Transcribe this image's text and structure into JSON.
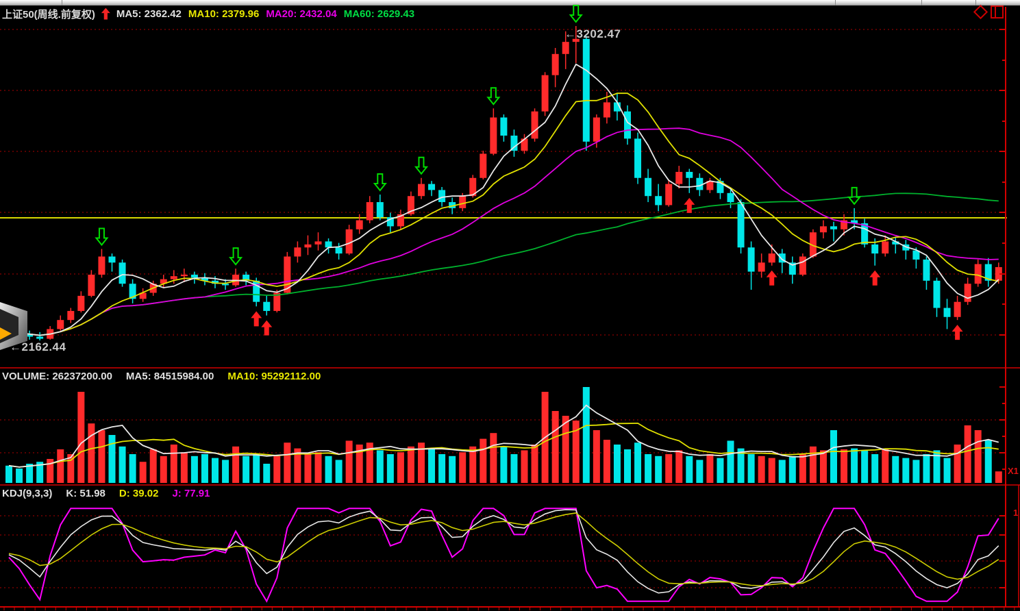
{
  "header": {
    "title": "上证50(周线.前复权)",
    "ma_items": [
      {
        "label": "MA5: 2362.42",
        "color": "#e0e0e0"
      },
      {
        "label": "MA10: 2379.96",
        "color": "#e8e800"
      },
      {
        "label": "MA20: 2432.04",
        "color": "#e800e8"
      },
      {
        "label": "MA60: 2629.43",
        "color": "#00dd44"
      }
    ]
  },
  "volume_pane": {
    "title_items": [
      {
        "label": "VOLUME: 26237200.00",
        "color": "#e0e0e0"
      },
      {
        "label": "MA5: 84515984.00",
        "color": "#e0e0e0"
      },
      {
        "label": "MA10: 95292112.00",
        "color": "#e8e800"
      }
    ]
  },
  "kdj_pane": {
    "title_items": [
      {
        "label": "KDJ(9,3,3)",
        "color": "#e0e0e0"
      },
      {
        "label": "K: 51.98",
        "color": "#e0e0e0"
      },
      {
        "label": "D: 39.02",
        "color": "#e8e800"
      },
      {
        "label": "J: 77.91",
        "color": "#e800e8"
      }
    ]
  },
  "annotations": {
    "peak": "←3202.47",
    "low": "←2162.44",
    "x_multiplier": "X1",
    "right_axis_partial": "1"
  },
  "colors": {
    "up": "#ff2b2b",
    "down": "#00e6e8",
    "ma5": "#e8e8e8",
    "ma10": "#e0e000",
    "ma20": "#e000e0",
    "ma60": "#00b22d",
    "grid": "#b00000",
    "axis": "#d40000",
    "refline": "#d8d800",
    "buy_marker": "#ff2020",
    "sell_marker": "#00dd00"
  },
  "chart_data": {
    "type": "candlestick",
    "symbol": "上证50",
    "period": "周线",
    "adjust": "前复权",
    "peak_price": 3202.47,
    "low_price": 2162.44,
    "reference_line_price": 2568,
    "ma_values": {
      "ma5": 2362.42,
      "ma10": 2379.96,
      "ma20": 2432.04,
      "ma60": 2629.43
    },
    "volume_values": {
      "volume": 26237200.0,
      "ma5": 84515984.0,
      "ma10": 95292112.0
    },
    "kdj_values": {
      "k": 51.98,
      "d": 39.02,
      "j": 77.91
    },
    "kdj_params": [
      9,
      3,
      3
    ],
    "candles": [
      [
        2200,
        2215,
        2170,
        2190
      ],
      [
        2190,
        2205,
        2175,
        2185
      ],
      [
        2185,
        2195,
        2165,
        2175
      ],
      [
        2175,
        2190,
        2162.44,
        2168
      ],
      [
        2168,
        2210,
        2165,
        2200
      ],
      [
        2200,
        2245,
        2195,
        2230
      ],
      [
        2230,
        2270,
        2220,
        2260
      ],
      [
        2260,
        2325,
        2255,
        2310
      ],
      [
        2310,
        2395,
        2305,
        2380
      ],
      [
        2380,
        2465,
        2370,
        2440
      ],
      [
        2440,
        2450,
        2390,
        2420
      ],
      [
        2420,
        2430,
        2340,
        2350
      ],
      [
        2350,
        2365,
        2285,
        2300
      ],
      [
        2300,
        2335,
        2290,
        2320
      ],
      [
        2320,
        2360,
        2310,
        2350
      ],
      [
        2350,
        2380,
        2335,
        2365
      ],
      [
        2365,
        2395,
        2350,
        2375
      ],
      [
        2375,
        2400,
        2355,
        2380
      ],
      [
        2380,
        2390,
        2350,
        2370
      ],
      [
        2370,
        2385,
        2345,
        2360
      ],
      [
        2360,
        2375,
        2335,
        2350
      ],
      [
        2350,
        2365,
        2330,
        2345
      ],
      [
        2345,
        2400,
        2340,
        2380
      ],
      [
        2380,
        2390,
        2345,
        2360
      ],
      [
        2360,
        2370,
        2275,
        2290
      ],
      [
        2290,
        2310,
        2245,
        2260
      ],
      [
        2260,
        2330,
        2255,
        2320
      ],
      [
        2320,
        2455,
        2315,
        2440
      ],
      [
        2440,
        2490,
        2420,
        2470
      ],
      [
        2470,
        2510,
        2445,
        2480
      ],
      [
        2480,
        2520,
        2460,
        2490
      ],
      [
        2490,
        2500,
        2450,
        2470
      ],
      [
        2470,
        2485,
        2430,
        2450
      ],
      [
        2450,
        2545,
        2445,
        2530
      ],
      [
        2530,
        2580,
        2515,
        2560
      ],
      [
        2560,
        2640,
        2550,
        2620
      ],
      [
        2620,
        2645,
        2560,
        2570
      ],
      [
        2570,
        2585,
        2520,
        2540
      ],
      [
        2540,
        2595,
        2530,
        2580
      ],
      [
        2580,
        2655,
        2575,
        2640
      ],
      [
        2640,
        2700,
        2630,
        2680
      ],
      [
        2680,
        2690,
        2640,
        2660
      ],
      [
        2660,
        2670,
        2605,
        2620
      ],
      [
        2620,
        2635,
        2580,
        2600
      ],
      [
        2600,
        2650,
        2590,
        2640
      ],
      [
        2640,
        2710,
        2635,
        2700
      ],
      [
        2700,
        2790,
        2695,
        2780
      ],
      [
        2780,
        2930,
        2775,
        2900
      ],
      [
        2900,
        2910,
        2820,
        2840
      ],
      [
        2840,
        2860,
        2770,
        2790
      ],
      [
        2790,
        2845,
        2780,
        2830
      ],
      [
        2830,
        2930,
        2820,
        2920
      ],
      [
        2920,
        3050,
        2905,
        3040
      ],
      [
        3040,
        3130,
        3000,
        3110
      ],
      [
        3110,
        3185,
        3060,
        3150
      ],
      [
        3150,
        3202.47,
        3080,
        3160
      ],
      [
        3160,
        3170,
        2790,
        2820
      ],
      [
        2820,
        2910,
        2800,
        2900
      ],
      [
        2900,
        2985,
        2880,
        2950
      ],
      [
        2950,
        2980,
        2890,
        2920
      ],
      [
        2920,
        2940,
        2810,
        2830
      ],
      [
        2830,
        2850,
        2680,
        2700
      ],
      [
        2700,
        2730,
        2620,
        2640
      ],
      [
        2640,
        2680,
        2590,
        2610
      ],
      [
        2610,
        2695,
        2605,
        2680
      ],
      [
        2680,
        2740,
        2665,
        2720
      ],
      [
        2720,
        2730,
        2650,
        2700
      ],
      [
        2700,
        2715,
        2640,
        2660
      ],
      [
        2660,
        2700,
        2650,
        2690
      ],
      [
        2690,
        2700,
        2630,
        2650
      ],
      [
        2650,
        2665,
        2600,
        2620
      ],
      [
        2620,
        2630,
        2450,
        2470
      ],
      [
        2470,
        2490,
        2330,
        2390
      ],
      [
        2390,
        2450,
        2370,
        2420
      ],
      [
        2420,
        2480,
        2410,
        2450
      ],
      [
        2450,
        2465,
        2385,
        2420
      ],
      [
        2420,
        2440,
        2350,
        2380
      ],
      [
        2380,
        2450,
        2375,
        2440
      ],
      [
        2440,
        2530,
        2435,
        2520
      ],
      [
        2520,
        2560,
        2500,
        2540
      ],
      [
        2540,
        2555,
        2490,
        2530
      ],
      [
        2530,
        2580,
        2510,
        2560
      ],
      [
        2560,
        2600,
        2530,
        2550
      ],
      [
        2550,
        2565,
        2470,
        2480
      ],
      [
        2480,
        2500,
        2410,
        2450
      ],
      [
        2450,
        2510,
        2440,
        2490
      ],
      [
        2490,
        2505,
        2450,
        2480
      ],
      [
        2480,
        2495,
        2430,
        2460
      ],
      [
        2460,
        2470,
        2400,
        2430
      ],
      [
        2430,
        2440,
        2330,
        2360
      ],
      [
        2360,
        2370,
        2240,
        2270
      ],
      [
        2270,
        2300,
        2200,
        2240
      ],
      [
        2240,
        2310,
        2230,
        2290
      ],
      [
        2290,
        2370,
        2280,
        2350
      ],
      [
        2350,
        2430,
        2340,
        2415
      ],
      [
        2415,
        2435,
        2340,
        2360
      ],
      [
        2360,
        2420,
        2350,
        2405
      ]
    ],
    "volumes": [
      0.18,
      0.15,
      0.2,
      0.22,
      0.25,
      0.35,
      0.3,
      0.95,
      0.62,
      0.55,
      0.5,
      0.38,
      0.3,
      0.22,
      0.35,
      0.28,
      0.4,
      0.32,
      0.28,
      0.3,
      0.26,
      0.24,
      0.38,
      0.28,
      0.3,
      0.2,
      0.28,
      0.42,
      0.36,
      0.3,
      0.32,
      0.28,
      0.24,
      0.44,
      0.4,
      0.42,
      0.34,
      0.3,
      0.32,
      0.38,
      0.42,
      0.36,
      0.3,
      0.28,
      0.32,
      0.38,
      0.46,
      0.52,
      0.38,
      0.3,
      0.34,
      0.4,
      0.95,
      0.75,
      0.7,
      0.65,
      1.0,
      0.55,
      0.45,
      0.4,
      0.35,
      0.42,
      0.3,
      0.28,
      0.3,
      0.34,
      0.28,
      0.24,
      0.3,
      0.26,
      0.44,
      0.36,
      0.3,
      0.28,
      0.26,
      0.24,
      0.28,
      0.3,
      0.38,
      0.34,
      0.55,
      0.35,
      0.36,
      0.34,
      0.3,
      0.36,
      0.28,
      0.26,
      0.24,
      0.3,
      0.34,
      0.26,
      0.4,
      0.6,
      0.55,
      0.45,
      0.12
    ],
    "buy_markers": [
      24,
      25,
      66,
      74,
      84,
      92
    ],
    "sell_markers": [
      9,
      22,
      36,
      40,
      47,
      55,
      82
    ]
  }
}
